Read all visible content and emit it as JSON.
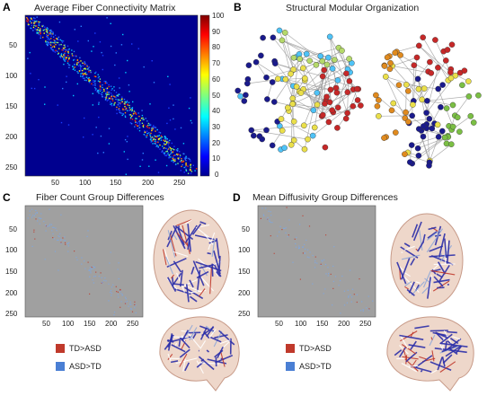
{
  "panels": {
    "a": {
      "letter": "A",
      "title": "Average Fiber Connectivity Matrix",
      "y_ticks": [
        "50",
        "100",
        "150",
        "200",
        "250"
      ],
      "x_ticks": [
        "50",
        "100",
        "150",
        "200",
        "250"
      ],
      "colorbar_ticks": [
        "100",
        "90",
        "80",
        "70",
        "60",
        "50",
        "40",
        "30",
        "20",
        "10",
        "0"
      ]
    },
    "b": {
      "letter": "B",
      "title": "Structural Modular Organization"
    },
    "c": {
      "letter": "C",
      "title": "Fiber Count Group Differences",
      "y_ticks": [
        "50",
        "100",
        "150",
        "200",
        "250"
      ],
      "x_ticks": [
        "50",
        "100",
        "150",
        "200",
        "250"
      ],
      "legend": [
        {
          "label": "TD>ASD",
          "color": "#c0392b"
        },
        {
          "label": "ASD>TD",
          "color": "#4a7fd4"
        }
      ]
    },
    "d": {
      "letter": "D",
      "title": "Mean Diffusivity Group Differences",
      "y_ticks": [
        "50",
        "100",
        "150",
        "200",
        "250"
      ],
      "x_ticks": [
        "50",
        "100",
        "150",
        "200",
        "250"
      ],
      "legend": [
        {
          "label": "TD>ASD",
          "color": "#c0392b"
        },
        {
          "label": "ASD>TD",
          "color": "#4a7fd4"
        }
      ]
    }
  },
  "colors": {
    "matrix_bg": "#00008f",
    "diff_bg": "#a0a0a0",
    "brain": "#e8c9b8"
  }
}
